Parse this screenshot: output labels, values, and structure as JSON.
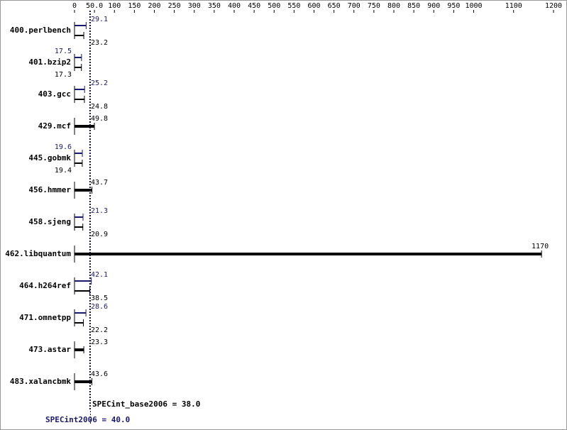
{
  "chart_data": {
    "type": "bar",
    "categories": [
      "400.perlbench",
      "401.bzip2",
      "403.gcc",
      "429.mcf",
      "445.gobmk",
      "456.hmmer",
      "458.sjeng",
      "462.libquantum",
      "464.h264ref",
      "471.omnetpp",
      "473.astar",
      "483.xalancbmk"
    ],
    "series": [
      {
        "color": "#191970",
        "values": [
          29.1,
          17.5,
          25.2,
          null,
          19.6,
          null,
          21.3,
          null,
          42.1,
          28.6,
          null,
          null
        ]
      },
      {
        "color": "#000000",
        "values": [
          23.2,
          17.3,
          24.8,
          49.8,
          19.4,
          43.7,
          20.9,
          1170,
          38.5,
          22.2,
          23.3,
          43.6
        ]
      }
    ],
    "xlim": [
      0,
      1200
    ],
    "xticks": [
      0,
      {
        "value": 50,
        "label": "50.0"
      },
      100,
      150,
      200,
      250,
      300,
      350,
      400,
      450,
      500,
      550,
      600,
      650,
      700,
      750,
      800,
      850,
      900,
      950,
      1000,
      1100,
      1200
    ],
    "summary": [
      {
        "label": "SPECint_base2006 = 38.0",
        "value": 38,
        "color": "#000000"
      },
      {
        "label": "SPECint2006 = 40.0",
        "value": 40,
        "color": "#191970"
      }
    ]
  }
}
